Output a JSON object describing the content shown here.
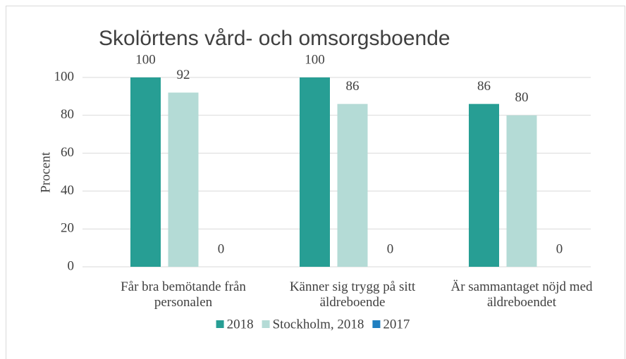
{
  "chart_data": {
    "type": "bar",
    "title": "Skolörtens vård- och omsorgsboende",
    "ylabel": "Procent",
    "categories": [
      "Får bra bemötande från personalen",
      "Känner sig trygg på sitt äldreboende",
      "Är sammantaget nöjd med äldreboendet"
    ],
    "series": [
      {
        "name": "2018",
        "color": "#279e94",
        "values": [
          100,
          100,
          86
        ]
      },
      {
        "name": "Stockholm, 2018",
        "color": "#b4dbd6",
        "values": [
          92,
          86,
          80
        ]
      },
      {
        "name": "2017",
        "color": "#1f7fc0",
        "values": [
          0,
          0,
          0
        ]
      }
    ],
    "ylim": [
      0,
      100
    ],
    "yticks": [
      0,
      20,
      40,
      60,
      80,
      100
    ],
    "grid": true,
    "legend": "bottom"
  }
}
